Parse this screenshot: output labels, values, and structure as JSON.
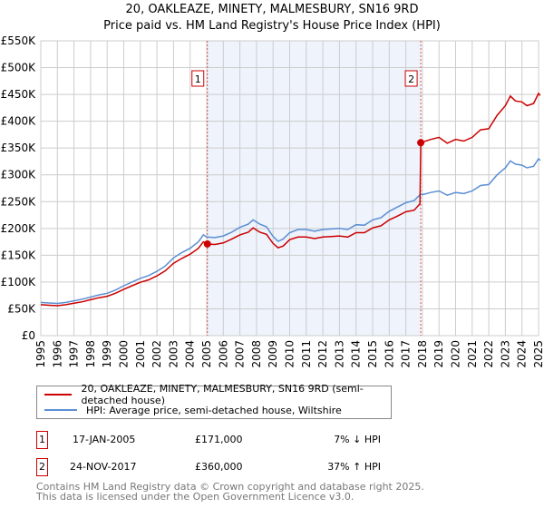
{
  "chart_data": {
    "type": "line",
    "title": "20, OAKLEAZE, MINETY, MALMESBURY, SN16 9RD",
    "subtitle": "Price paid vs. HM Land Registry's House Price Index (HPI)",
    "xlim": [
      1995,
      2025.1
    ],
    "ylim": [
      0,
      550000
    ],
    "y_ticks": [
      {
        "v": 0,
        "label": "£0"
      },
      {
        "v": 50000,
        "label": "£50K"
      },
      {
        "v": 100000,
        "label": "£100K"
      },
      {
        "v": 150000,
        "label": "£150K"
      },
      {
        "v": 200000,
        "label": "£200K"
      },
      {
        "v": 250000,
        "label": "£250K"
      },
      {
        "v": 300000,
        "label": "£300K"
      },
      {
        "v": 350000,
        "label": "£350K"
      },
      {
        "v": 400000,
        "label": "£400K"
      },
      {
        "v": 450000,
        "label": "£450K"
      },
      {
        "v": 500000,
        "label": "£500K"
      },
      {
        "v": 550000,
        "label": "£550K"
      }
    ],
    "x_ticks": [
      "1995",
      "1996",
      "1997",
      "1998",
      "1999",
      "2000",
      "2001",
      "2002",
      "2003",
      "2004",
      "2005",
      "2006",
      "2007",
      "2008",
      "2009",
      "2010",
      "2011",
      "2012",
      "2013",
      "2014",
      "2015",
      "2016",
      "2017",
      "2018",
      "2019",
      "2020",
      "2021",
      "2022",
      "2023",
      "2024",
      "2025"
    ],
    "grid": true,
    "shaded_range": [
      2005.04,
      2017.9
    ],
    "series": [
      {
        "name": "20, OAKLEAZE, MINETY, MALMESBURY, SN16 9RD (semi-detached house)",
        "color": "#cc0000",
        "x": [
          1995,
          1995.5,
          1996,
          1996.5,
          1997,
          1997.5,
          1998,
          1998.5,
          1999,
          1999.5,
          2000,
          2000.5,
          2001,
          2001.5,
          2002,
          2002.5,
          2003,
          2003.5,
          2004,
          2004.5,
          2004.8,
          2005.04,
          2005.5,
          2006,
          2006.5,
          2007,
          2007.5,
          2007.8,
          2008.2,
          2008.6,
          2009,
          2009.3,
          2009.6,
          2010,
          2010.5,
          2011,
          2011.5,
          2012,
          2012.5,
          2013,
          2013.5,
          2014,
          2014.5,
          2015,
          2015.5,
          2016,
          2016.5,
          2017,
          2017.5,
          2017.85,
          2017.9,
          2018.5,
          2019,
          2019.5,
          2020,
          2020.5,
          2021,
          2021.5,
          2022,
          2022.5,
          2023,
          2023.3,
          2023.6,
          2024,
          2024.3,
          2024.7,
          2025,
          2025.1
        ],
        "y": [
          57700,
          56700,
          55800,
          57700,
          60500,
          63200,
          67000,
          70700,
          73500,
          79000,
          86500,
          93000,
          99500,
          104000,
          111600,
          121000,
          135000,
          144000,
          152000,
          163000,
          175000,
          171000,
          170000,
          173000,
          180000,
          188000,
          193000,
          201000,
          193000,
          189000,
          172000,
          164000,
          167000,
          179000,
          184000,
          184000,
          181000,
          184000,
          185000,
          186000,
          184000,
          192000,
          192000,
          201000,
          205000,
          216000,
          223000,
          231000,
          234000,
          246000,
          360000,
          366000,
          370000,
          359000,
          366000,
          363000,
          370000,
          384000,
          386000,
          411000,
          429000,
          447000,
          438000,
          436000,
          429000,
          433000,
          452000,
          448000
        ]
      },
      {
        "name": "HPI: Average price, semi-detached house, Wiltshire",
        "color": "#5b8fd4",
        "x": [
          1995,
          1995.5,
          1996,
          1996.5,
          1997,
          1997.5,
          1998,
          1998.5,
          1999,
          1999.5,
          2000,
          2000.5,
          2001,
          2001.5,
          2002,
          2002.5,
          2003,
          2003.5,
          2004,
          2004.5,
          2004.8,
          2005,
          2005.5,
          2006,
          2006.5,
          2007,
          2007.5,
          2007.8,
          2008.2,
          2008.6,
          2009,
          2009.3,
          2009.6,
          2010,
          2010.5,
          2011,
          2011.5,
          2012,
          2012.5,
          2013,
          2013.5,
          2014,
          2014.5,
          2015,
          2015.5,
          2016,
          2016.5,
          2017,
          2017.5,
          2017.9,
          2018,
          2018.5,
          2019,
          2019.5,
          2020,
          2020.5,
          2021,
          2021.5,
          2022,
          2022.5,
          2023,
          2023.3,
          2023.6,
          2024,
          2024.3,
          2024.7,
          2025,
          2025.1
        ],
        "y": [
          62000,
          61000,
          60000,
          62000,
          65000,
          68000,
          72000,
          76000,
          79000,
          85000,
          93000,
          100000,
          107000,
          112000,
          120000,
          130000,
          145000,
          155000,
          163000,
          175000,
          188000,
          184000,
          183000,
          186000,
          193000,
          202000,
          208000,
          216000,
          208000,
          203000,
          185000,
          176000,
          180000,
          192000,
          198000,
          198000,
          195000,
          198000,
          199000,
          200000,
          198000,
          207000,
          206000,
          216000,
          220000,
          232000,
          240000,
          248000,
          252000,
          264000,
          263000,
          267000,
          270000,
          262000,
          267000,
          265000,
          270000,
          280000,
          282000,
          300000,
          313000,
          326000,
          320000,
          318000,
          313000,
          316000,
          330000,
          327000
        ]
      }
    ],
    "annotations": [
      {
        "label": "1",
        "x": 2005.04,
        "y": 171000
      },
      {
        "label": "2",
        "x": 2017.9,
        "y": 360000
      }
    ]
  },
  "legend": {
    "items": [
      "20, OAKLEAZE, MINETY, MALMESBURY, SN16 9RD (semi-detached house)",
      "HPI: Average price, semi-detached house, Wiltshire"
    ]
  },
  "transactions": [
    {
      "num": "1",
      "date": "17-JAN-2005",
      "price": "£171,000",
      "hpi": "7% ↓ HPI"
    },
    {
      "num": "2",
      "date": "24-NOV-2017",
      "price": "£360,000",
      "hpi": "37% ↑ HPI"
    }
  ],
  "footer": {
    "line1": "Contains HM Land Registry data © Crown copyright and database right 2025.",
    "line2": "This data is licensed under the Open Government Licence v3.0."
  }
}
